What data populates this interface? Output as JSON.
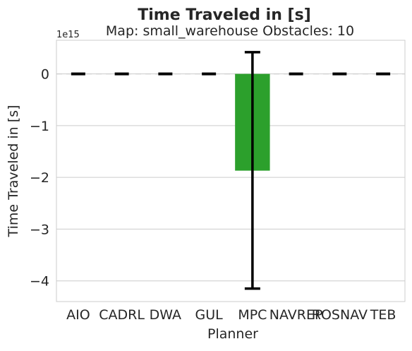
{
  "chart_data": {
    "type": "bar",
    "title": "Time Traveled in [s]",
    "subtitle": "Map: small_warehouse Obstacles: 10",
    "xlabel": "Planner",
    "ylabel": "Time Traveled in [s]",
    "y_offset_label": "1e15",
    "categories": [
      "AIO",
      "CADRL",
      "DWA",
      "GUL",
      "MPC",
      "NAVREP",
      "ROSNAV",
      "TEB"
    ],
    "values": [
      0,
      0,
      0,
      0,
      -1.87,
      0,
      0,
      0
    ],
    "error_bars": [
      {
        "category": "MPC",
        "low": -4.15,
        "high": 0.42
      }
    ],
    "y_scale_exponent": 15,
    "ylim": [
      -4.4,
      0.65
    ],
    "yticks": [
      0,
      -1,
      -2,
      -3,
      -4
    ],
    "ytick_labels": [
      "0",
      "−1",
      "−2",
      "−3",
      "−4"
    ],
    "reference_line": {
      "y": 0,
      "style": "dashed",
      "color": "#cccccc"
    },
    "grid": "horizontal",
    "colors": {
      "MPC": "#2ca02c",
      "errorbar": "#000000",
      "grid": "#cccccc",
      "frame": "#cccccc"
    }
  }
}
